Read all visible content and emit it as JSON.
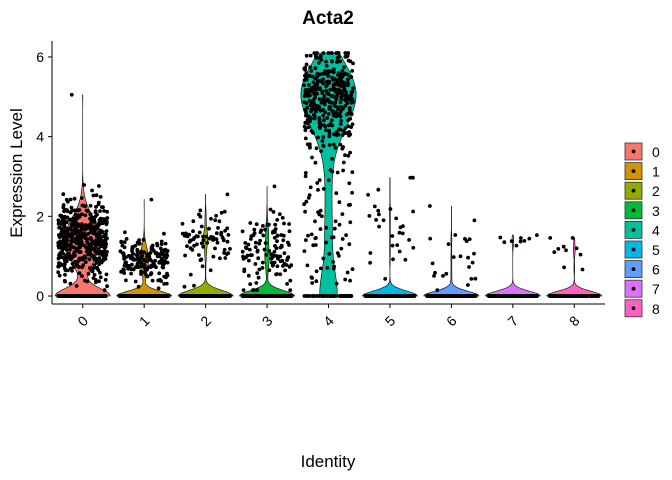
{
  "chart_data": {
    "type": "violin",
    "title": "Acta2",
    "xlabel": "Identity",
    "ylabel": "Expression Level",
    "categories": [
      "0",
      "1",
      "2",
      "3",
      "4",
      "5",
      "6",
      "7",
      "8"
    ],
    "ylim": [
      -0.2,
      6.4
    ],
    "yticks": [
      0,
      2,
      4,
      6
    ],
    "ytick_labels": [
      "0",
      "2",
      "4",
      "6"
    ],
    "x_tick_rotation": 45,
    "legend": {
      "placement": "right",
      "entries": [
        "0",
        "1",
        "2",
        "3",
        "4",
        "5",
        "6",
        "7",
        "8"
      ]
    },
    "colors": [
      "#F8766D",
      "#D39200",
      "#93AA00",
      "#00BA38",
      "#00C19F",
      "#00B9E3",
      "#619CFF",
      "#DB72FB",
      "#FF61C3"
    ],
    "point_color": "#000000",
    "groups": [
      {
        "category": "0",
        "max": 5.05,
        "nonzero_count": 480,
        "nonzero_center": 1.4,
        "nonzero_spread": 0.5,
        "zero_count": 260
      },
      {
        "category": "1",
        "max": 2.42,
        "nonzero_count": 170,
        "nonzero_center": 0.9,
        "nonzero_spread": 0.28,
        "zero_count": 420
      },
      {
        "category": "2",
        "max": 2.55,
        "nonzero_count": 75,
        "nonzero_center": 1.4,
        "nonzero_spread": 0.4,
        "zero_count": 420
      },
      {
        "category": "3",
        "max": 2.75,
        "nonzero_count": 120,
        "nonzero_center": 1.1,
        "nonzero_spread": 0.5,
        "zero_count": 420
      },
      {
        "category": "4",
        "max": 6.1,
        "nonzero_count": 340,
        "nonzero_center": 5.0,
        "nonzero_spread": 0.6,
        "low_count": 90,
        "zero_count": 60
      },
      {
        "category": "5",
        "max": 2.97,
        "nonzero_count": 28,
        "nonzero_center": 1.5,
        "nonzero_spread": 0.8,
        "zero_count": 380
      },
      {
        "category": "6",
        "max": 2.26,
        "nonzero_count": 22,
        "nonzero_center": 0.9,
        "nonzero_spread": 0.6,
        "zero_count": 300
      },
      {
        "category": "7",
        "max": 1.53,
        "nonzero_count": 8,
        "nonzero_center": 1.4,
        "nonzero_spread": 0.1,
        "zero_count": 260
      },
      {
        "category": "8",
        "max": 1.46,
        "nonzero_count": 9,
        "nonzero_center": 0.9,
        "nonzero_spread": 0.35,
        "zero_count": 160
      }
    ]
  }
}
